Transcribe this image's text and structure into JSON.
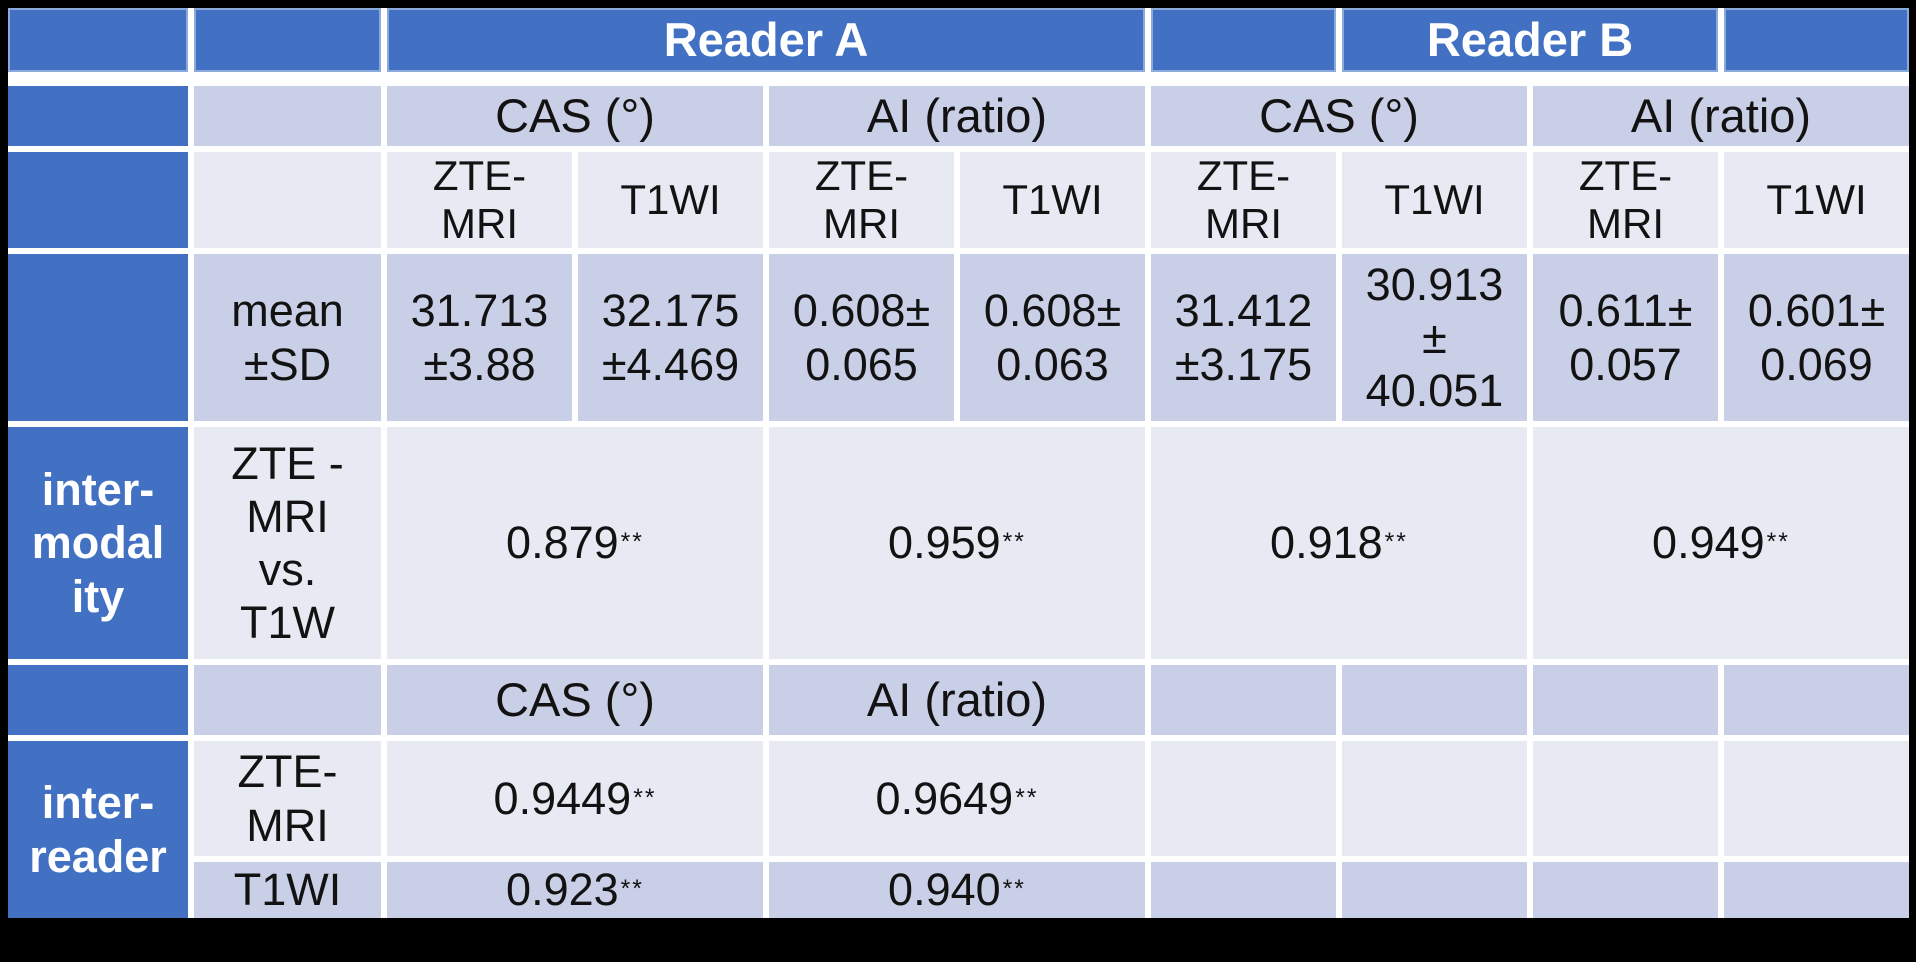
{
  "colors": {
    "header_blue": "#4271C3",
    "band_medium": "#C9CFE6",
    "band_light": "#E8EAF3",
    "gridline_white": "#FFFFFF",
    "page_background": "#000000",
    "body_text": "#121212",
    "header_text": "#FFFFFF"
  },
  "top_header": {
    "reader_a": "Reader A",
    "reader_b": "Reader B"
  },
  "measure_header": {
    "cas": "CAS (°)",
    "ai": "AI (ratio)"
  },
  "modality_header": {
    "zte_mri": "ZTE-\nMRI",
    "t1wi": "T1WI"
  },
  "mean_sd_row": {
    "label": "mean\n±SD",
    "a_cas_zte": "31.713\n±3.88",
    "a_cas_t1wi": "32.175\n±4.469",
    "a_ai_zte": "0.608±\n0.065",
    "a_ai_t1wi": "0.608±\n0.063",
    "b_cas_zte": "31.412\n±3.175",
    "b_cas_t1wi": "30.913\n±\n40.051",
    "b_ai_zte": "0.611±\n0.057",
    "b_ai_t1wi": "0.601±\n0.069"
  },
  "inter_modality_row": {
    "label": "inter-\nmodal\nity",
    "sub_label": "ZTE -\nMRI\nvs.\nT1W",
    "a_cas": {
      "value": "0.879",
      "sig": "**"
    },
    "a_ai": {
      "value": "0.959",
      "sig": "**"
    },
    "b_cas": {
      "value": "0.918",
      "sig": "**"
    },
    "b_ai": {
      "value": "0.949",
      "sig": "**"
    }
  },
  "inter_reader_section": {
    "label": "inter-\nreader",
    "measure_header": {
      "cas": "CAS (°)",
      "ai": "AI (ratio)"
    },
    "zte_row": {
      "label": "ZTE-\nMRI",
      "cas": {
        "value": "0.9449",
        "sig": "**"
      },
      "ai": {
        "value": "0.9649",
        "sig": "**"
      }
    },
    "t1wi_row": {
      "label": "T1WI",
      "cas": {
        "value": "0.923",
        "sig": "**"
      },
      "ai": {
        "value": "0.940",
        "sig": "**"
      }
    }
  }
}
